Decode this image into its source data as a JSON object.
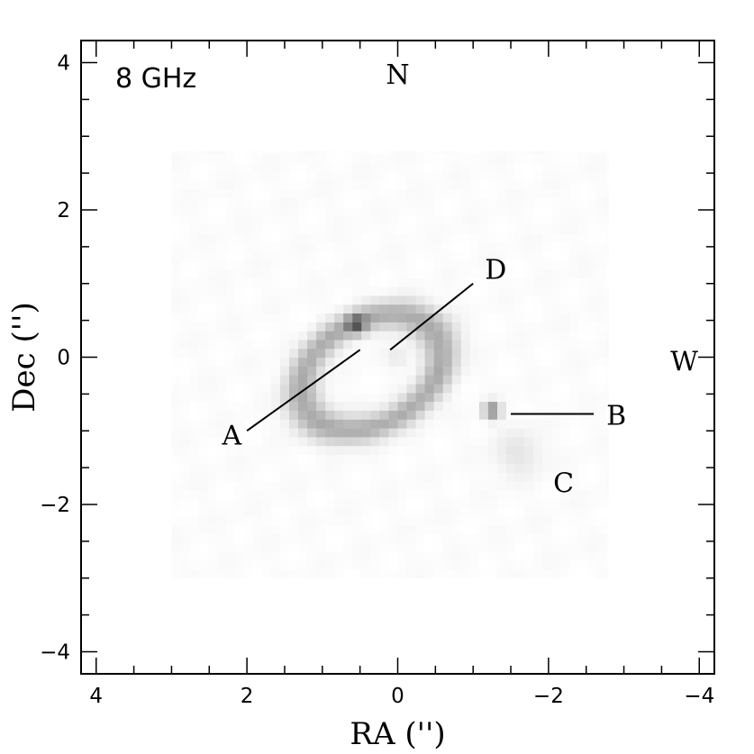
{
  "chart_data": {
    "type": "heatmap",
    "title": "",
    "panel_label": "8 GHz",
    "xlabel": "RA ('')",
    "ylabel": "Dec ('')",
    "xlim": [
      4.2,
      -4.2
    ],
    "ylim": [
      -4.3,
      4.3
    ],
    "xticks": [
      {
        "value": 4,
        "label": "4"
      },
      {
        "value": 2,
        "label": "2"
      },
      {
        "value": 0,
        "label": "0"
      },
      {
        "value": -2,
        "label": "−2"
      },
      {
        "value": -4,
        "label": "−4"
      }
    ],
    "yticks": [
      {
        "value": 4,
        "label": "4"
      },
      {
        "value": 2,
        "label": "2"
      },
      {
        "value": 0,
        "label": "0"
      },
      {
        "value": -2,
        "label": "−2"
      },
      {
        "value": -4,
        "label": "−4"
      }
    ],
    "minor_tick_step": 0.5,
    "map_extent": {
      "ra": [
        3.0,
        -2.8
      ],
      "dec": [
        -3.0,
        2.8
      ]
    },
    "ring": {
      "center_ra": 0.35,
      "center_dec": -0.2,
      "semi_major": 1.0,
      "semi_minor": 0.7,
      "angle_deg": -30,
      "width": 0.28,
      "peak": 0.35
    },
    "components": [
      {
        "name": "A",
        "ra": 0.55,
        "dec": 0.45,
        "sigma": 0.09,
        "peak": 0.45
      },
      {
        "name": "B",
        "ra": -1.25,
        "dec": -0.72,
        "sigma": 0.08,
        "peak": 0.5
      },
      {
        "name": "C",
        "ra": -1.6,
        "dec": -1.3,
        "sigma": 0.22,
        "peak": 0.1
      },
      {
        "name": "D",
        "ra": 0.0,
        "dec": 0.0,
        "sigma": 0.1,
        "peak": 0.08
      }
    ],
    "annotations": [
      {
        "text": "A",
        "label_ra": 2.2,
        "label_dec": -1.05,
        "line": [
          [
            2.0,
            -1.0
          ],
          [
            0.5,
            0.1
          ]
        ]
      },
      {
        "text": "B",
        "label_ra": -2.9,
        "label_dec": -0.78,
        "line": [
          [
            -1.5,
            -0.77
          ],
          [
            -2.6,
            -0.77
          ]
        ]
      },
      {
        "text": "C",
        "label_ra": -2.2,
        "label_dec": -1.7,
        "line": []
      },
      {
        "text": "D",
        "label_ra": -1.3,
        "label_dec": 1.2,
        "line": [
          [
            0.1,
            0.1
          ],
          [
            -1.0,
            1.0
          ]
        ]
      },
      {
        "text": "N",
        "label_ra": 0.0,
        "label_dec": 3.85,
        "line": []
      },
      {
        "text": "W",
        "label_ra": -3.8,
        "label_dec": -0.05,
        "line": []
      }
    ],
    "colormap": "grayscale",
    "grid": false,
    "legend": "none"
  }
}
